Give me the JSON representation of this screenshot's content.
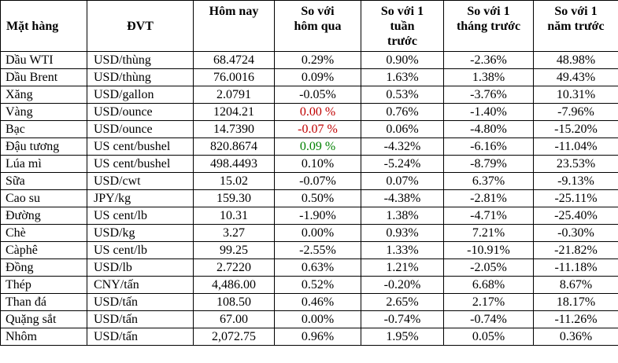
{
  "colors": {
    "highlight_red": "#c00000",
    "highlight_green": "#008000",
    "text": "#000000",
    "border": "#000000",
    "background": "#ffffff"
  },
  "headers": {
    "commodity": "Mặt hàng",
    "unit": "ĐVT",
    "today": "Hôm nay",
    "vs_yesterday": "So với\nhôm qua",
    "vs_week": "So với 1\ntuần\ntrước",
    "vs_month": "So với 1\ntháng trước",
    "vs_year": "So với 1\nnăm trước"
  },
  "chart_data": {
    "type": "table",
    "columns": [
      "Mặt hàng",
      "ĐVT",
      "Hôm nay",
      "So với hôm qua",
      "So với 1 tuần trước",
      "So với 1 tháng trước",
      "So với 1 năm trước"
    ],
    "rows": [
      {
        "commodity": "Dầu WTI",
        "unit": "USD/thùng",
        "today": "68.4724",
        "vs_yesterday": "0.29%",
        "vs_week": "0.90%",
        "vs_month": "-2.36%",
        "vs_year": "48.98%"
      },
      {
        "commodity": "Dầu Brent",
        "unit": "USD/thùng",
        "today": "76.0016",
        "vs_yesterday": "0.09%",
        "vs_week": "1.63%",
        "vs_month": "1.38%",
        "vs_year": "49.43%"
      },
      {
        "commodity": "Xăng",
        "unit": "USD/gallon",
        "today": "2.0791",
        "vs_yesterday": "-0.05%",
        "vs_week": "0.53%",
        "vs_month": "-3.76%",
        "vs_year": "10.31%"
      },
      {
        "commodity": "Vàng",
        "unit": "USD/ounce",
        "today": "1204.21",
        "vs_yesterday": "0.00 %",
        "vs_yesterday_color": "red",
        "vs_week": "0.76%",
        "vs_month": "-1.40%",
        "vs_year": "-7.96%"
      },
      {
        "commodity": "Bạc",
        "unit": "USD/ounce",
        "today": "14.7390",
        "vs_yesterday": "-0.07 %",
        "vs_yesterday_color": "red",
        "vs_week": "0.06%",
        "vs_month": "-4.80%",
        "vs_year": "-15.20%"
      },
      {
        "commodity": "Đậu tương",
        "unit": "US cent/bushel",
        "today": "820.8674",
        "vs_yesterday": "0.09 %",
        "vs_yesterday_color": "green",
        "vs_week": "-4.32%",
        "vs_month": "-6.16%",
        "vs_year": "-11.04%"
      },
      {
        "commodity": "Lúa mì",
        "unit": "US cent/bushel",
        "today": "498.4493",
        "vs_yesterday": "0.10%",
        "vs_week": "-5.24%",
        "vs_month": "-8.79%",
        "vs_year": "23.53%"
      },
      {
        "commodity": "Sữa",
        "unit": "USD/cwt",
        "today": "15.02",
        "vs_yesterday": "-0.07%",
        "vs_week": "0.07%",
        "vs_month": "6.37%",
        "vs_year": "-9.13%"
      },
      {
        "commodity": "Cao su",
        "unit": "JPY/kg",
        "today": "159.30",
        "vs_yesterday": "0.50%",
        "vs_week": "-4.38%",
        "vs_month": "-2.81%",
        "vs_year": "-25.11%"
      },
      {
        "commodity": "Đường",
        "unit": "US cent/lb",
        "today": "10.31",
        "vs_yesterday": "-1.90%",
        "vs_week": "1.38%",
        "vs_month": "-4.71%",
        "vs_year": "-25.40%"
      },
      {
        "commodity": "Chè",
        "unit": "USD/kg",
        "today": "3.27",
        "vs_yesterday": "0.00%",
        "vs_week": "0.93%",
        "vs_month": "7.21%",
        "vs_year": "-0.30%"
      },
      {
        "commodity": "Càphê",
        "unit": "US cent/lb",
        "today": "99.25",
        "vs_yesterday": "-2.55%",
        "vs_week": "1.33%",
        "vs_month": "-10.91%",
        "vs_year": "-21.82%"
      },
      {
        "commodity": "Đồng",
        "unit": "USD/lb",
        "today": "2.7220",
        "vs_yesterday": "0.63%",
        "vs_week": "1.21%",
        "vs_month": "-2.05%",
        "vs_year": "-11.18%"
      },
      {
        "commodity": "Thép",
        "unit": "CNY/tấn",
        "today": "4,486.00",
        "vs_yesterday": "0.52%",
        "vs_week": "-0.20%",
        "vs_month": "6.68%",
        "vs_year": "8.67%"
      },
      {
        "commodity": "Than đá",
        "unit": "USD/tấn",
        "today": "108.50",
        "vs_yesterday": "0.46%",
        "vs_week": "2.65%",
        "vs_month": "2.17%",
        "vs_year": "18.17%"
      },
      {
        "commodity": "Quặng sắt",
        "unit": "USD/tấn",
        "today": "67.00",
        "vs_yesterday": "0.00%",
        "vs_week": "-0.74%",
        "vs_month": "-0.74%",
        "vs_year": "-11.26%"
      },
      {
        "commodity": "Nhôm",
        "unit": "USD/tấn",
        "today": "2,072.75",
        "vs_yesterday": "0.96%",
        "vs_week": "1.95%",
        "vs_month": "0.05%",
        "vs_year": "0.36%"
      }
    ]
  }
}
